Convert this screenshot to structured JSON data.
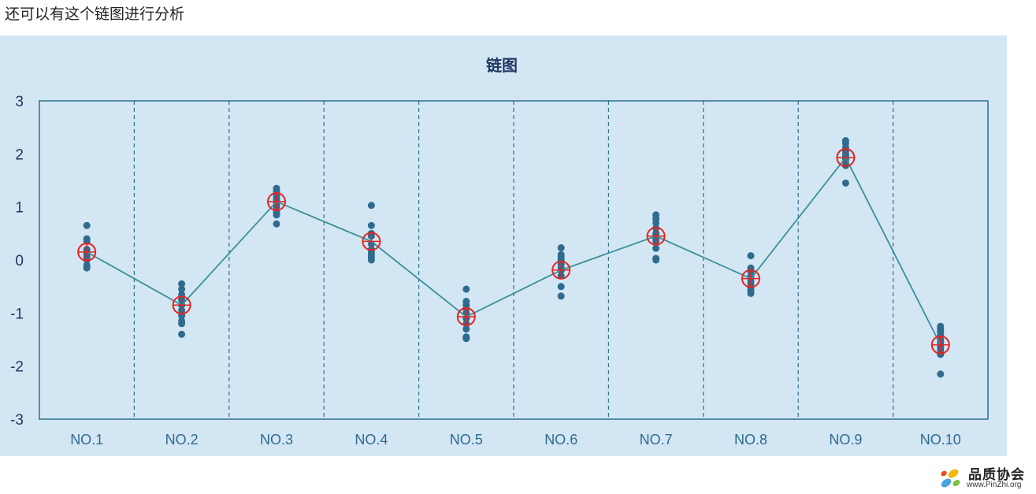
{
  "intro_text": "还可以有这个链图进行分析",
  "colors": {
    "panel_bg": "#d3e6f4",
    "axis": "#2e6f8e",
    "points": "#2e6b8f",
    "line": "#3a8f9a",
    "mean_marker": "#e8231f"
  },
  "chart_data": {
    "type": "scatter",
    "title": "链图",
    "xlabel": "",
    "ylabel": "",
    "ylim": [
      -3,
      3
    ],
    "yticks": [
      3,
      2,
      1,
      0,
      -1,
      -2,
      -3
    ],
    "grid": "vertical dashed separators",
    "categories": [
      "NO.1",
      "NO.2",
      "NO.3",
      "NO.4",
      "NO.5",
      "NO.6",
      "NO.7",
      "NO.8",
      "NO.9",
      "NO.10"
    ],
    "means": [
      0.15,
      -0.85,
      1.1,
      0.35,
      -1.07,
      -0.19,
      0.45,
      -0.35,
      1.93,
      -1.6
    ],
    "points": [
      [
        0.65,
        0.4,
        0.35,
        0.2,
        0.15,
        0.1,
        0.05,
        0.0,
        -0.1,
        -0.15
      ],
      [
        -0.45,
        -0.55,
        -0.65,
        -0.75,
        -0.85,
        -0.95,
        -1.05,
        -1.15,
        -1.2,
        -1.4
      ],
      [
        1.35,
        1.3,
        1.25,
        1.2,
        1.15,
        1.1,
        1.05,
        1.0,
        0.9,
        0.85,
        0.68
      ],
      [
        1.03,
        0.65,
        0.5,
        0.45,
        0.3,
        0.2,
        0.15,
        0.1,
        0.05,
        0.0
      ],
      [
        -0.55,
        -0.78,
        -0.85,
        -0.92,
        -1.0,
        -1.1,
        -1.2,
        -1.3,
        -1.45,
        -1.48
      ],
      [
        0.23,
        0.1,
        0.05,
        0.0,
        -0.08,
        -0.15,
        -0.2,
        -0.3,
        -0.5,
        -0.68
      ],
      [
        0.85,
        0.78,
        0.7,
        0.6,
        0.5,
        0.45,
        0.4,
        0.35,
        0.22,
        0.03,
        0.0
      ],
      [
        0.08,
        -0.15,
        -0.22,
        -0.3,
        -0.35,
        -0.4,
        -0.45,
        -0.52,
        -0.58,
        -0.63
      ],
      [
        2.25,
        2.2,
        2.12,
        2.05,
        2.0,
        1.95,
        1.9,
        1.85,
        1.78,
        1.45
      ],
      [
        -1.25,
        -1.3,
        -1.35,
        -1.42,
        -1.5,
        -1.55,
        -1.6,
        -1.65,
        -1.7,
        -1.78,
        -2.15
      ]
    ]
  },
  "logo": {
    "name": "品质协会",
    "url": "www.PinZhi.org"
  }
}
